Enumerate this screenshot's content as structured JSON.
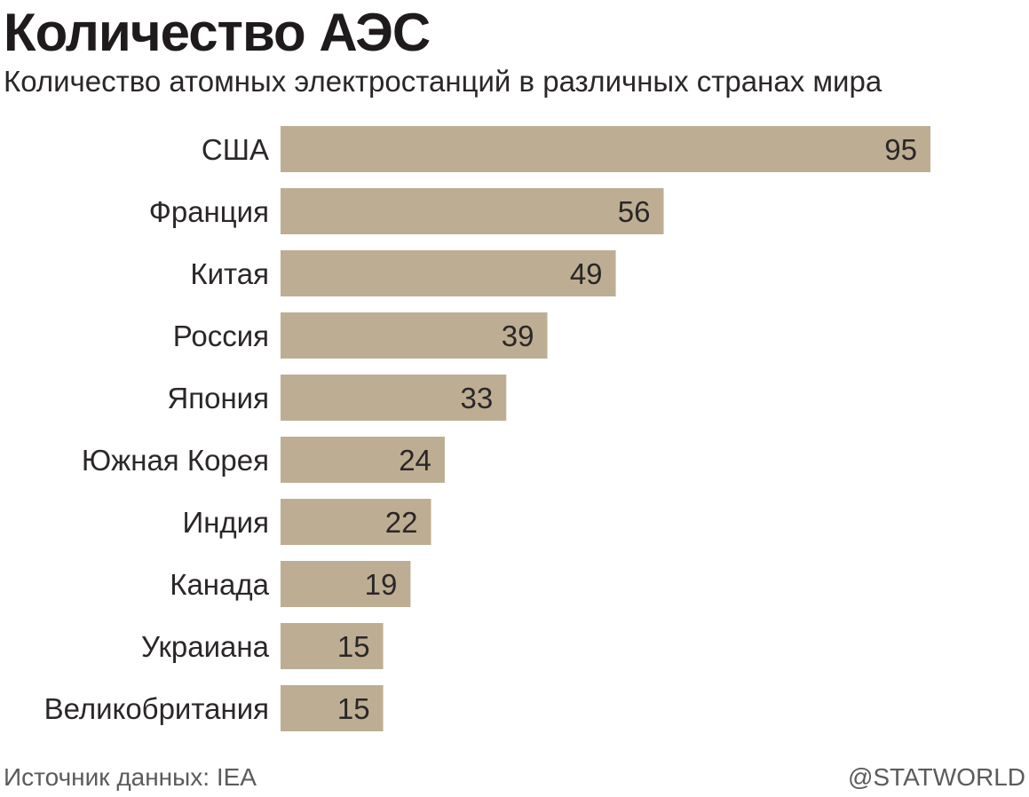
{
  "chart_data": {
    "type": "bar",
    "orientation": "horizontal",
    "title": "Количество АЭС",
    "subtitle": "Количество атомных электростанций в различных странах мира",
    "categories": [
      "США",
      "Франция",
      "Китая",
      "Россия",
      "Япония",
      "Южная Корея",
      "Индия",
      "Канада",
      "Украиана",
      "Великобритания"
    ],
    "values": [
      95,
      56,
      49,
      39,
      33,
      24,
      22,
      19,
      15,
      15
    ],
    "xlabel": "",
    "ylabel": "",
    "xlim": [
      0,
      95
    ],
    "grid": false,
    "data_labels": "inside-end",
    "colors": {
      "bar": "#bdae93",
      "text": "#2b2728"
    }
  },
  "footer": {
    "source": "Источник данных: IEA",
    "credit": "@STATWORLD"
  }
}
